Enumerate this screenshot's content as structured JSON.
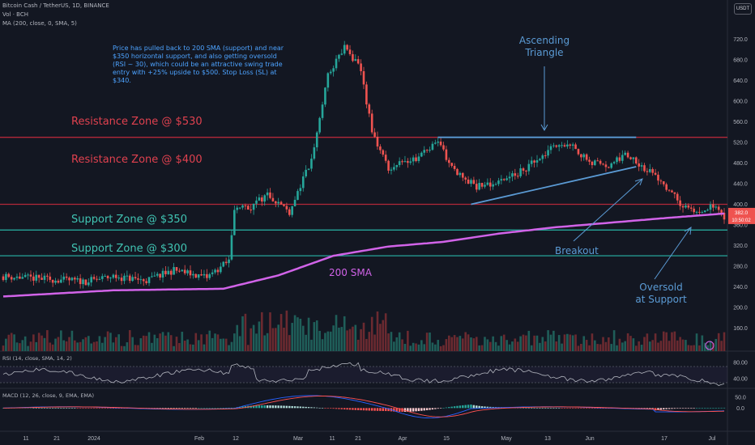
{
  "header": {
    "title": "Bitcoin Cash / TetherUS, 1D, BINANCE",
    "vol_label": "Vol · BCH",
    "ma_label": "MA (200, close, 0, SMA, 5)",
    "currency_button": "USDT"
  },
  "annotations": {
    "note": "Price has pulled back to 200 SMA (support) and near $350 horizontal support, and also getting oversold (RSI ~ 30), which could be an attractive swing trade entry with +25% upside to $500. Stop Loss (SL) at $340.",
    "resistance_530": "Resistance Zone @ $530",
    "resistance_400": "Resistance Zone @ $400",
    "support_350": "Support Zone @ $350",
    "support_300": "Support Zone @ $300",
    "sma_label": "200 SMA",
    "triangle_label": "Ascending Triangle",
    "breakout_label": "Breakout",
    "oversold_label": "Oversold at Support"
  },
  "colors": {
    "background": "#131722",
    "up": "#26a69a",
    "down": "#ef5350",
    "resistance": "#b2283a",
    "support": "#26a69a",
    "sma": "#d163e8",
    "trendline": "#5b9bd5",
    "note": "#4da3ff",
    "rsi": "#b2b5be",
    "macd": "#2962ff",
    "signal": "#ff5252"
  },
  "chart_data": {
    "type": "candlestick",
    "symbol": "BCHUSDT",
    "timeframe": "1D",
    "ylim": [
      140,
      740
    ],
    "y_ticks": [
      160,
      200,
      240,
      280,
      320,
      360,
      400,
      440,
      480,
      520,
      560,
      600,
      640,
      680,
      720
    ],
    "x_ticks": [
      "11",
      "21",
      "2024",
      "Feb",
      "12",
      "Mar",
      "11",
      "21",
      "Apr",
      "15",
      "May",
      "13",
      "Jun",
      "17",
      "Jul"
    ],
    "price_labels": [
      "382.0",
      "10:50:02"
    ],
    "levels": [
      530,
      400,
      350,
      300
    ],
    "series": [
      {
        "name": "BCHUSDT",
        "kind": "price",
        "approx_path": [
          [
            0,
            260
          ],
          [
            30,
            250
          ],
          [
            40,
            260
          ],
          [
            52,
            252
          ],
          [
            62,
            272
          ],
          [
            74,
            258
          ],
          [
            82,
            290
          ],
          [
            84,
            395
          ],
          [
            90,
            395
          ],
          [
            96,
            420
          ],
          [
            104,
            386
          ],
          [
            112,
            485
          ],
          [
            118,
            650
          ],
          [
            124,
            705
          ],
          [
            130,
            660
          ],
          [
            134,
            540
          ],
          [
            140,
            470
          ],
          [
            150,
            490
          ],
          [
            158,
            520
          ],
          [
            164,
            465
          ],
          [
            172,
            435
          ],
          [
            182,
            445
          ],
          [
            190,
            470
          ],
          [
            200,
            510
          ],
          [
            206,
            520
          ],
          [
            212,
            485
          ],
          [
            220,
            470
          ],
          [
            226,
            500
          ],
          [
            232,
            475
          ],
          [
            240,
            442
          ],
          [
            246,
            400
          ],
          [
            252,
            385
          ],
          [
            258,
            395
          ],
          [
            262,
            376
          ]
        ]
      },
      {
        "name": "200 SMA",
        "kind": "sma",
        "approx_path": [
          [
            0,
            221
          ],
          [
            40,
            233
          ],
          [
            80,
            236
          ],
          [
            100,
            262
          ],
          [
            120,
            300
          ],
          [
            140,
            318
          ],
          [
            160,
            327
          ],
          [
            180,
            343
          ],
          [
            200,
            355
          ],
          [
            220,
            364
          ],
          [
            240,
            373
          ],
          [
            262,
            382
          ]
        ]
      }
    ],
    "rsi": {
      "label": "RSI (14, close, SMA, 14, 2)",
      "ylim": [
        20,
        100
      ],
      "ticks": [
        40,
        80
      ],
      "levels": [
        70,
        30
      ]
    },
    "macd": {
      "label": "MACD (12, 26, close, 9, EMA, EMA)",
      "ylim": [
        -100,
        80
      ],
      "ticks": [
        50,
        0
      ]
    }
  }
}
